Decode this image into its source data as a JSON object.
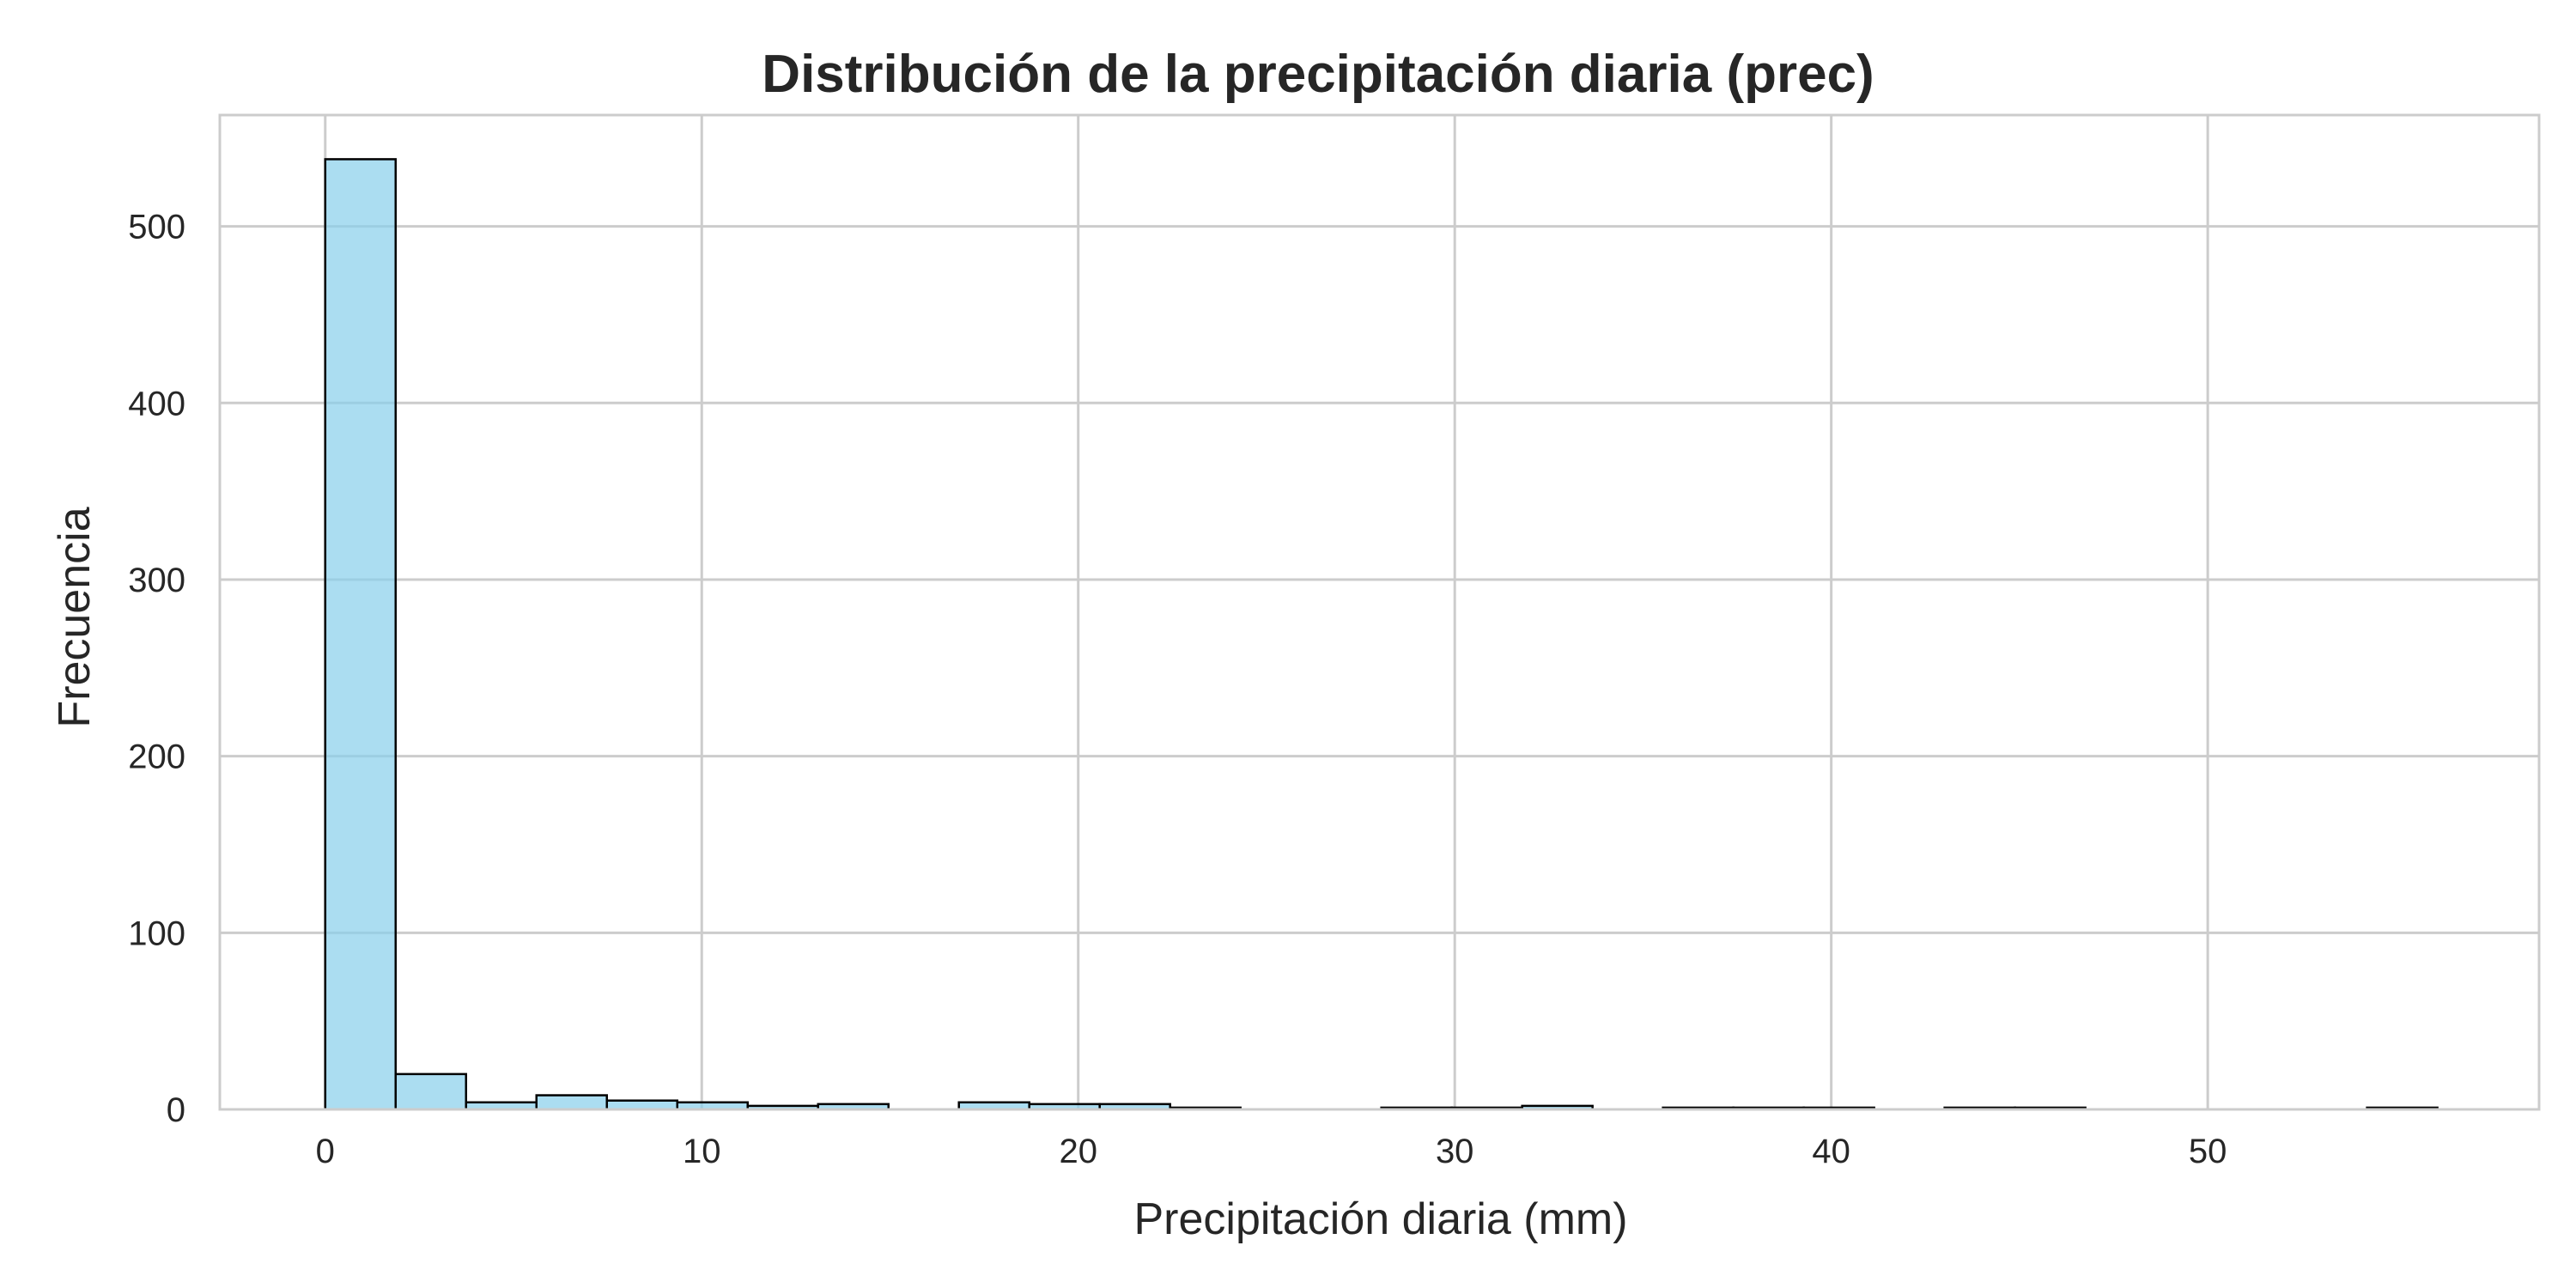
{
  "chart_data": {
    "type": "bar",
    "subtype": "histogram",
    "title": "Distribución de la precipitación diaria (prec)",
    "xlabel": "Precipitación diaria (mm)",
    "ylabel": "Frecuencia",
    "xlim": [
      -2.8,
      58.8
    ],
    "ylim": [
      0,
      563
    ],
    "xticks": [
      0,
      10,
      20,
      30,
      40,
      50
    ],
    "yticks": [
      0,
      100,
      200,
      300,
      400,
      500
    ],
    "bin_start": 0,
    "bin_width": 1.87,
    "counts": [
      538,
      20,
      4,
      8,
      5,
      4,
      2,
      3,
      0,
      4,
      3,
      3,
      1,
      0,
      0,
      1,
      1,
      2,
      0,
      1,
      1,
      1,
      0,
      1,
      1,
      0,
      0,
      0,
      0,
      1
    ],
    "grid": true,
    "colors": {
      "bar_fill": "#87ceeb",
      "bar_edge": "#000000",
      "grid": "#cccccc",
      "text": "#262626"
    }
  }
}
